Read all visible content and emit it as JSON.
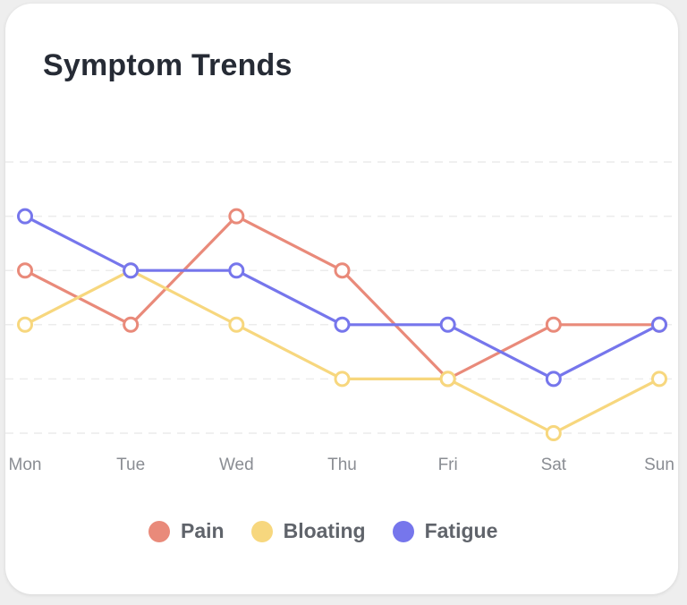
{
  "title": "Symptom Trends",
  "chart_data": {
    "type": "line",
    "title": "Symptom Trends",
    "categories": [
      "Mon",
      "Tue",
      "Wed",
      "Thu",
      "Fri",
      "Sat",
      "Sun"
    ],
    "ylim": [
      0,
      5
    ],
    "grid": true,
    "legend_position": "bottom",
    "series": [
      {
        "name": "Pain",
        "color": "#e98a7a",
        "values": [
          3,
          2,
          4,
          3,
          1,
          2,
          2
        ]
      },
      {
        "name": "Bloating",
        "color": "#f7d77e",
        "values": [
          2,
          3,
          2,
          1,
          1,
          0,
          1
        ]
      },
      {
        "name": "Fatigue",
        "color": "#7676ec",
        "values": [
          4,
          3,
          3,
          2,
          2,
          1,
          2
        ]
      }
    ]
  }
}
